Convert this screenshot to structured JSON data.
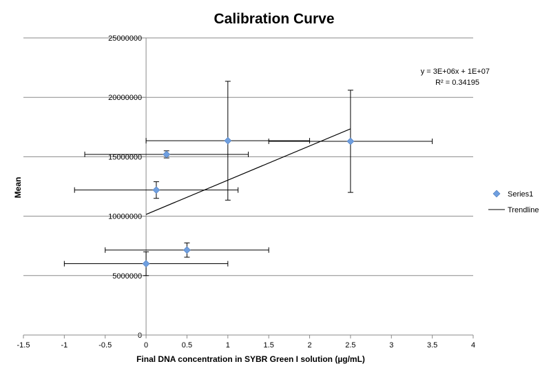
{
  "chart_data": {
    "type": "scatter",
    "title": "Calibration Curve",
    "xlabel": "Final DNA concentration in SYBR Green I solution (µg/mL)",
    "ylabel": "Mean",
    "xlim": [
      -1.5,
      4
    ],
    "ylim": [
      0,
      25000000
    ],
    "x_ticks": [
      -1.5,
      -1,
      -0.5,
      0,
      0.5,
      1,
      1.5,
      2,
      2.5,
      3,
      3.5,
      4
    ],
    "x_tick_labels": [
      "-1.5",
      "-1",
      "-0.5",
      "0",
      "0.5",
      "1",
      "1.5",
      "2",
      "2.5",
      "3",
      "3.5",
      "4"
    ],
    "y_ticks": [
      0,
      5000000,
      10000000,
      15000000,
      20000000,
      25000000
    ],
    "y_tick_labels": [
      "0",
      "5000000",
      "10000000",
      "15000000",
      "20000000",
      "25000000"
    ],
    "grid": "horizontal",
    "legend_position": "right",
    "series": [
      {
        "name": "Series1",
        "color": "#6f9fe0",
        "marker": "diamond",
        "points": [
          {
            "x": 0,
            "y": 6000000,
            "xerr": 1,
            "yerr": 1000000
          },
          {
            "x": 0.125,
            "y": 12200000,
            "xerr": 1,
            "yerr": 700000
          },
          {
            "x": 0.25,
            "y": 15200000,
            "xerr": 1,
            "yerr": 300000
          },
          {
            "x": 0.5,
            "y": 7150000,
            "xerr": 1,
            "yerr": 600000
          },
          {
            "x": 1,
            "y": 16350000,
            "xerr": 1,
            "yerr": 5000000
          },
          {
            "x": 2.5,
            "y": 16300000,
            "xerr": 1,
            "yerr": 4300000
          }
        ]
      }
    ],
    "trendline": {
      "name": "Trendline",
      "color": "#000000",
      "x_range": [
        0,
        2.5
      ],
      "y_start": 10150000,
      "y_end": 17350000,
      "equation": "y = 3E+06x + 1E+07",
      "r_squared": "R² = 0.34195"
    }
  }
}
